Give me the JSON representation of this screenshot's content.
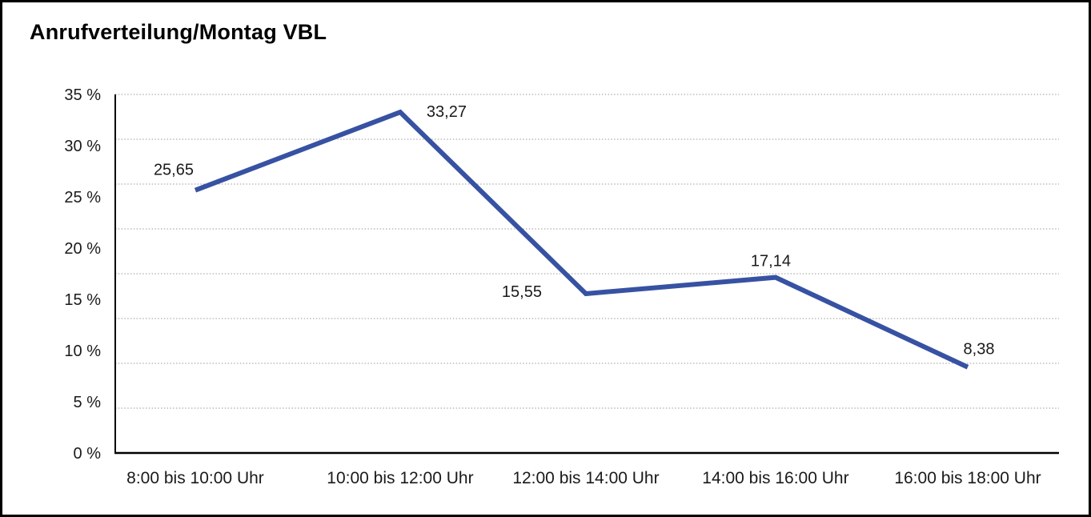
{
  "header": {
    "title": "Anrufverteilung/Montag VBL"
  },
  "chart_data": {
    "type": "line",
    "title": "Anrufverteilung/Montag VBL",
    "categories": [
      "8:00 bis 10:00 Uhr",
      "10:00 bis 12:00 Uhr",
      "12:00 bis 14:00 Uhr",
      "14:00 bis 16:00 Uhr",
      "16:00 bis 18:00 Uhr"
    ],
    "values": [
      25.65,
      33.27,
      15.55,
      17.14,
      8.38
    ],
    "value_labels": [
      "25,65",
      "33,27",
      "15,55",
      "17,14",
      "8,38"
    ],
    "unit": "%",
    "ylim": [
      0,
      35
    ],
    "ytick_step": 5,
    "ytick_labels": [
      "35 %",
      "30 %",
      "25 %",
      "20 %",
      "15 %",
      "10 %",
      "5 %",
      "0 %"
    ],
    "xlabel": "",
    "ylabel": "",
    "legend": "none",
    "grid": {
      "horizontal": true,
      "vertical": false,
      "style": "dotted",
      "intervals": 8
    },
    "colors": {
      "line": "#3752A2",
      "text": "#1a1a1a",
      "grid": "#9a9a9a",
      "axis": "#000000",
      "background": "#ffffff"
    }
  }
}
